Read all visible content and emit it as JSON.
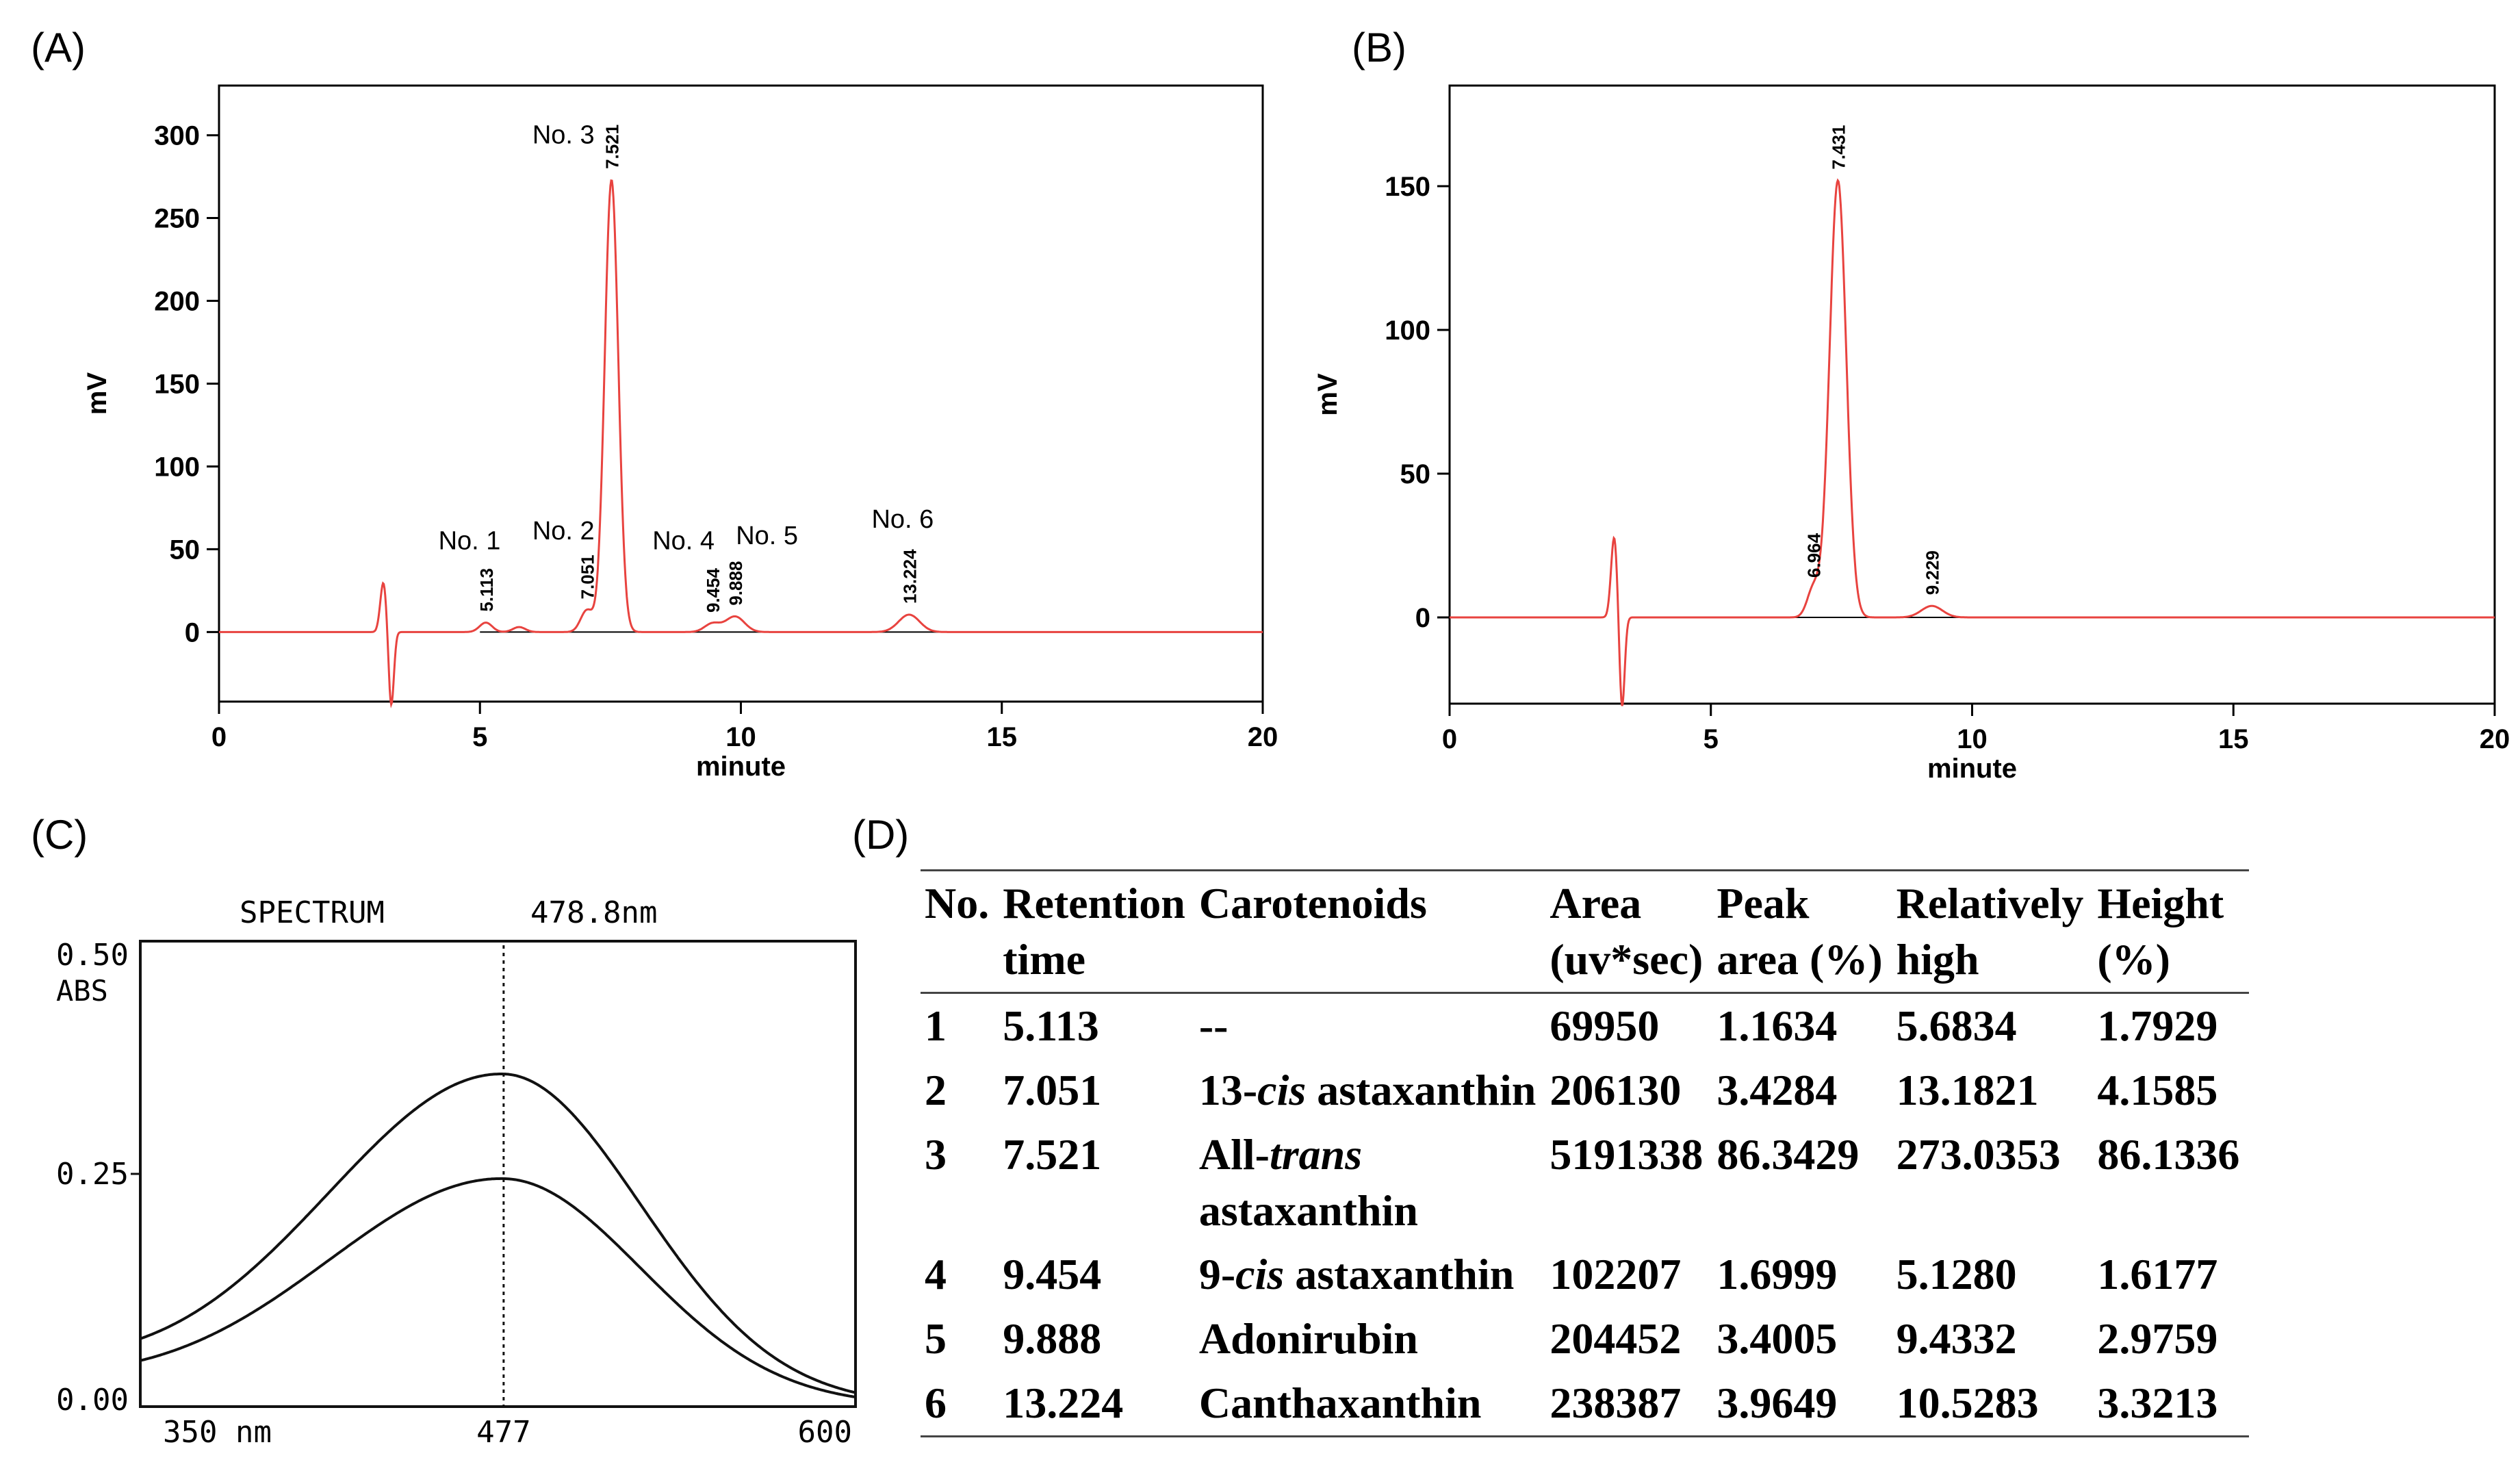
{
  "panels": {
    "a": "(A)",
    "b": "(B)",
    "c": "(C)",
    "d": "(D)"
  },
  "colors": {
    "trace": "#e8433f",
    "baseline": "#000000",
    "axis": "#000000"
  },
  "chart_data": [
    {
      "id": "A",
      "type": "line",
      "xlabel": "minute",
      "ylabel": "mV",
      "xlim": [
        0,
        20
      ],
      "ylim": [
        -42,
        330
      ],
      "xticks": [
        0,
        5,
        10,
        15,
        20
      ],
      "yticks": [
        0,
        50,
        100,
        150,
        200,
        250,
        300
      ],
      "series": [
        {
          "name": "chromatogram",
          "peaks": [
            {
              "rt": 3.15,
              "height": 30,
              "width": 0.06
            },
            {
              "rt": 3.3,
              "height": -45,
              "width": 0.05
            },
            {
              "rt": 5.113,
              "height": 5.7,
              "width": 0.12
            },
            {
              "rt": 5.75,
              "height": 3,
              "width": 0.12
            },
            {
              "rt": 7.051,
              "height": 13.2,
              "width": 0.12
            },
            {
              "rt": 7.521,
              "height": 273.0,
              "width": 0.13
            },
            {
              "rt": 9.454,
              "height": 5.1,
              "width": 0.15
            },
            {
              "rt": 9.888,
              "height": 9.4,
              "width": 0.18
            },
            {
              "rt": 13.224,
              "height": 10.5,
              "width": 0.2
            }
          ]
        }
      ],
      "peak_labels": [
        {
          "rt": 5.113,
          "label": "5.113"
        },
        {
          "rt": 7.051,
          "label": "7.051"
        },
        {
          "rt": 7.521,
          "label": "7.521"
        },
        {
          "rt": 9.454,
          "label": "9.454"
        },
        {
          "rt": 9.888,
          "label": "9.888"
        },
        {
          "rt": 13.224,
          "label": "13.224"
        }
      ],
      "annotations": [
        {
          "text": "No. 1",
          "x": 4.8,
          "y": 50
        },
        {
          "text": "No. 2",
          "x": 6.6,
          "y": 56
        },
        {
          "text": "No. 3",
          "x": 6.6,
          "y": 295
        },
        {
          "text": "No. 4",
          "x": 8.9,
          "y": 50
        },
        {
          "text": "No. 5",
          "x": 10.5,
          "y": 53
        },
        {
          "text": "No. 6",
          "x": 13.1,
          "y": 63
        }
      ]
    },
    {
      "id": "B",
      "type": "line",
      "xlabel": "minute",
      "ylabel": "mV",
      "xlim": [
        0,
        20
      ],
      "ylim": [
        -30,
        185
      ],
      "xticks": [
        0,
        5,
        10,
        15,
        20
      ],
      "yticks": [
        0,
        50,
        100,
        150
      ],
      "series": [
        {
          "name": "chromatogram",
          "peaks": [
            {
              "rt": 3.15,
              "height": 28,
              "width": 0.06
            },
            {
              "rt": 3.3,
              "height": -32,
              "width": 0.05
            },
            {
              "rt": 6.964,
              "height": 10,
              "width": 0.12
            },
            {
              "rt": 7.431,
              "height": 152,
              "width": 0.16
            },
            {
              "rt": 9.229,
              "height": 4,
              "width": 0.2
            }
          ]
        }
      ],
      "peak_labels": [
        {
          "rt": 6.964,
          "label": "6.964"
        },
        {
          "rt": 7.431,
          "label": "7.431"
        },
        {
          "rt": 9.229,
          "label": "9.229"
        }
      ],
      "annotations": []
    },
    {
      "id": "C",
      "type": "line",
      "title": "SPECTRUM",
      "title_value": "478.8nm",
      "ylabel": "ABS",
      "xlim": [
        350,
        600
      ],
      "ylim": [
        0,
        0.5
      ],
      "yticks": [
        "0.00",
        "0.25",
        "0.50"
      ],
      "xticks": [
        "350 nm",
        "477",
        "600"
      ],
      "marker_x": 477,
      "series": [
        {
          "name": "spectrum-1",
          "peak_x": 477,
          "peak_y": 0.35,
          "base_left": 0.03
        },
        {
          "name": "spectrum-2",
          "peak_x": 477,
          "peak_y": 0.24,
          "base_left": 0.02
        }
      ]
    }
  ],
  "table": {
    "headers": [
      [
        "No."
      ],
      [
        "Retention",
        "time"
      ],
      [
        "Carotenoids"
      ],
      [
        "Area",
        "(uv*sec)"
      ],
      [
        "Peak",
        "area (%)"
      ],
      [
        "Relatively",
        "high"
      ],
      [
        "Height",
        "(%)"
      ]
    ],
    "rows": [
      {
        "no": "1",
        "rt": "5.113",
        "car_pre": "--",
        "car_it": "",
        "car_post": "",
        "area": "69950",
        "pct": "1.1634",
        "rel": "5.6834",
        "h": "1.7929"
      },
      {
        "no": "2",
        "rt": "7.051",
        "car_pre": "13-",
        "car_it": "cis",
        "car_post": " astaxanthin",
        "area": "206130",
        "pct": "3.4284",
        "rel": "13.1821",
        "h": "4.1585"
      },
      {
        "no": "3",
        "rt": "7.521",
        "car_pre": "All-",
        "car_it": "trans",
        "car_post": " astaxanthin",
        "area": "5191338",
        "pct": "86.3429",
        "rel": "273.0353",
        "h": "86.1336"
      },
      {
        "no": "4",
        "rt": "9.454",
        "car_pre": "9-",
        "car_it": "cis",
        "car_post": " astaxanthin",
        "area": "102207",
        "pct": "1.6999",
        "rel": "5.1280",
        "h": "1.6177"
      },
      {
        "no": "5",
        "rt": "9.888",
        "car_pre": "Adonirubin",
        "car_it": "",
        "car_post": "",
        "area": "204452",
        "pct": "3.4005",
        "rel": "9.4332",
        "h": "2.9759"
      },
      {
        "no": "6",
        "rt": "13.224",
        "car_pre": "Canthaxanthin",
        "car_it": "",
        "car_post": "",
        "area": "238387",
        "pct": "3.9649",
        "rel": "10.5283",
        "h": "3.3213"
      }
    ]
  }
}
